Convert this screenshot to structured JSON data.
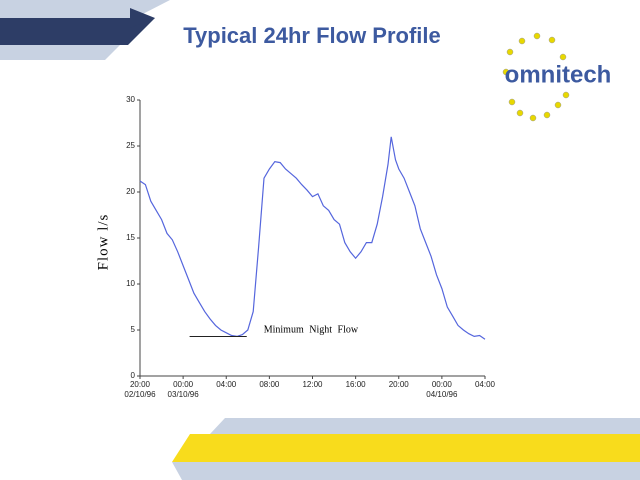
{
  "logo": "omnitech",
  "chart_data": {
    "type": "line",
    "title": "Typical 24hr Flow Profile",
    "y_label": "Flow l/s",
    "annotation": {
      "text": "Minimum Night Flow",
      "value": 4.3,
      "x": [
        4.6,
        9.9
      ]
    },
    "xlim": [
      0,
      32
    ],
    "xticks": [
      {
        "value": 0,
        "label": "20:00"
      },
      {
        "value": 4,
        "label": "00:00"
      },
      {
        "value": 8,
        "label": "04:00"
      },
      {
        "value": 12,
        "label": "08:00"
      },
      {
        "value": 16,
        "label": "12:00"
      },
      {
        "value": 20,
        "label": "16:00"
      },
      {
        "value": 24,
        "label": "20:00"
      },
      {
        "value": 28,
        "label": "00:00"
      },
      {
        "value": 32,
        "label": "04:00"
      }
    ],
    "xtick_dates": [
      {
        "value": 0,
        "label": "02/10/96"
      },
      {
        "value": 4,
        "label": "03/10/96"
      },
      {
        "value": 28,
        "label": "04/10/96"
      }
    ],
    "ylim": [
      0,
      30
    ],
    "yticks": [
      0,
      5,
      10,
      15,
      20,
      25,
      30
    ],
    "series": [
      {
        "color": "#5566dd",
        "x": [
          0,
          0.5,
          1,
          1.5,
          2,
          2.5,
          3,
          3.5,
          4,
          4.5,
          5,
          5.5,
          6,
          6.5,
          7,
          7.5,
          8,
          8.5,
          9,
          9.5,
          10,
          10.5,
          11,
          11.5,
          12,
          12.5,
          13,
          13.5,
          14,
          14.5,
          15,
          15.5,
          16,
          16.5,
          17,
          17.5,
          18,
          18.5,
          19,
          19.5,
          20,
          20.5,
          21,
          21.5,
          22,
          22.5,
          23,
          23.3,
          23.7,
          24,
          24.5,
          25,
          25.5,
          26,
          26.5,
          27,
          27.5,
          28,
          28.5,
          29,
          29.5,
          30,
          30.5,
          31,
          31.5,
          32
        ],
        "values": [
          21.2,
          20.8,
          19,
          18,
          17,
          15.5,
          14.8,
          13.5,
          12,
          10.5,
          9,
          8,
          7,
          6.2,
          5.5,
          5,
          4.7,
          4.4,
          4.3,
          4.5,
          5,
          7,
          14,
          21.5,
          22.5,
          23.3,
          23.2,
          22.5,
          22,
          21.5,
          20.8,
          20.2,
          19.5,
          19.8,
          18.5,
          18,
          17,
          16.5,
          14.5,
          13.5,
          12.8,
          13.5,
          14.5,
          14.5,
          16.5,
          19.5,
          23,
          26,
          23.5,
          22.5,
          21.5,
          20,
          18.5,
          16,
          14.5,
          13,
          11,
          9.5,
          7.5,
          6.5,
          5.5,
          5,
          4.6,
          4.3,
          4.4,
          4.0
        ]
      }
    ]
  }
}
